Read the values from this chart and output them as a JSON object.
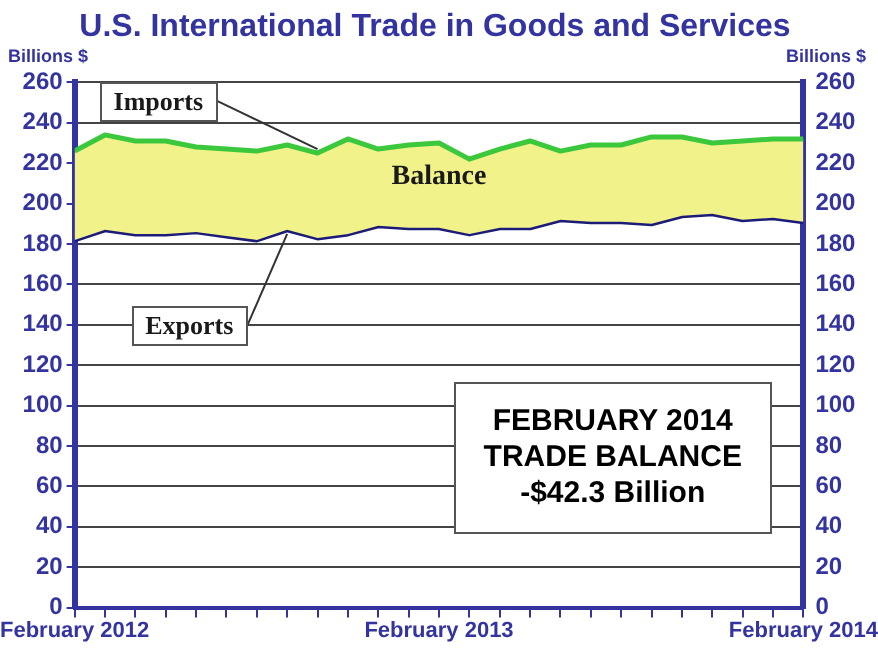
{
  "chart_data": {
    "type": "line",
    "title": "U.S. International Trade in Goods and Services",
    "ylabel": "Billions $",
    "y2label": "Billions $",
    "x": [
      "2012-02",
      "2012-03",
      "2012-04",
      "2012-05",
      "2012-06",
      "2012-07",
      "2012-08",
      "2012-09",
      "2012-10",
      "2012-11",
      "2012-12",
      "2013-01",
      "2013-02",
      "2013-03",
      "2013-04",
      "2013-05",
      "2013-06",
      "2013-07",
      "2013-08",
      "2013-09",
      "2013-10",
      "2013-11",
      "2013-12",
      "2014-01",
      "2014-02"
    ],
    "series": [
      {
        "name": "Imports",
        "type": "area",
        "color": "#3cc83c",
        "values": [
          226,
          234,
          231,
          231,
          228,
          227,
          226,
          229,
          225,
          232,
          227,
          229,
          230,
          222,
          227,
          231,
          226,
          229,
          229,
          233,
          233,
          230,
          231,
          232,
          232
        ]
      },
      {
        "name": "Exports",
        "type": "line",
        "color": "#1c1c78",
        "values": [
          182,
          187,
          185,
          185,
          186,
          184,
          182,
          187,
          183,
          185,
          189,
          188,
          188,
          185,
          188,
          188,
          192,
          191,
          191,
          190,
          194,
          195,
          192,
          193,
          191
        ]
      }
    ],
    "xlim": [
      "2012-02",
      "2014-02"
    ],
    "xticks": [
      {
        "value": "2012-02",
        "label": "February 2012"
      },
      {
        "value": "2012-03",
        "label": null
      },
      {
        "value": "2012-04",
        "label": null
      },
      {
        "value": "2012-05",
        "label": null
      },
      {
        "value": "2012-06",
        "label": null
      },
      {
        "value": "2012-07",
        "label": null
      },
      {
        "value": "2012-08",
        "label": null
      },
      {
        "value": "2012-09",
        "label": null
      },
      {
        "value": "2012-10",
        "label": null
      },
      {
        "value": "2012-11",
        "label": null
      },
      {
        "value": "2012-12",
        "label": null
      },
      {
        "value": "2013-01",
        "label": null
      },
      {
        "value": "2013-02",
        "label": "February 2013"
      },
      {
        "value": "2013-03",
        "label": null
      },
      {
        "value": "2013-04",
        "label": null
      },
      {
        "value": "2013-05",
        "label": null
      },
      {
        "value": "2013-06",
        "label": null
      },
      {
        "value": "2013-07",
        "label": null
      },
      {
        "value": "2013-08",
        "label": null
      },
      {
        "value": "2013-09",
        "label": null
      },
      {
        "value": "2013-10",
        "label": null
      },
      {
        "value": "2013-11",
        "label": null
      },
      {
        "value": "2013-12",
        "label": null
      },
      {
        "value": "2014-01",
        "label": null
      },
      {
        "value": "2014-02",
        "label": "February 2014"
      }
    ],
    "ylim": [
      0,
      260
    ],
    "yticks": [
      0,
      20,
      40,
      60,
      80,
      100,
      120,
      140,
      160,
      180,
      200,
      220,
      240,
      260
    ],
    "y2lim": [
      0,
      260
    ],
    "y2ticks": [
      0,
      20,
      40,
      60,
      80,
      100,
      120,
      140,
      160,
      180,
      200,
      220,
      240,
      260
    ],
    "grid": "y",
    "legend": false,
    "marker": "none",
    "line_style": "solid",
    "annotations": [
      "Balance",
      "FEBRUARY 2014\nTRADE BALANCE\n-$42.3 Billion"
    ]
  }
}
